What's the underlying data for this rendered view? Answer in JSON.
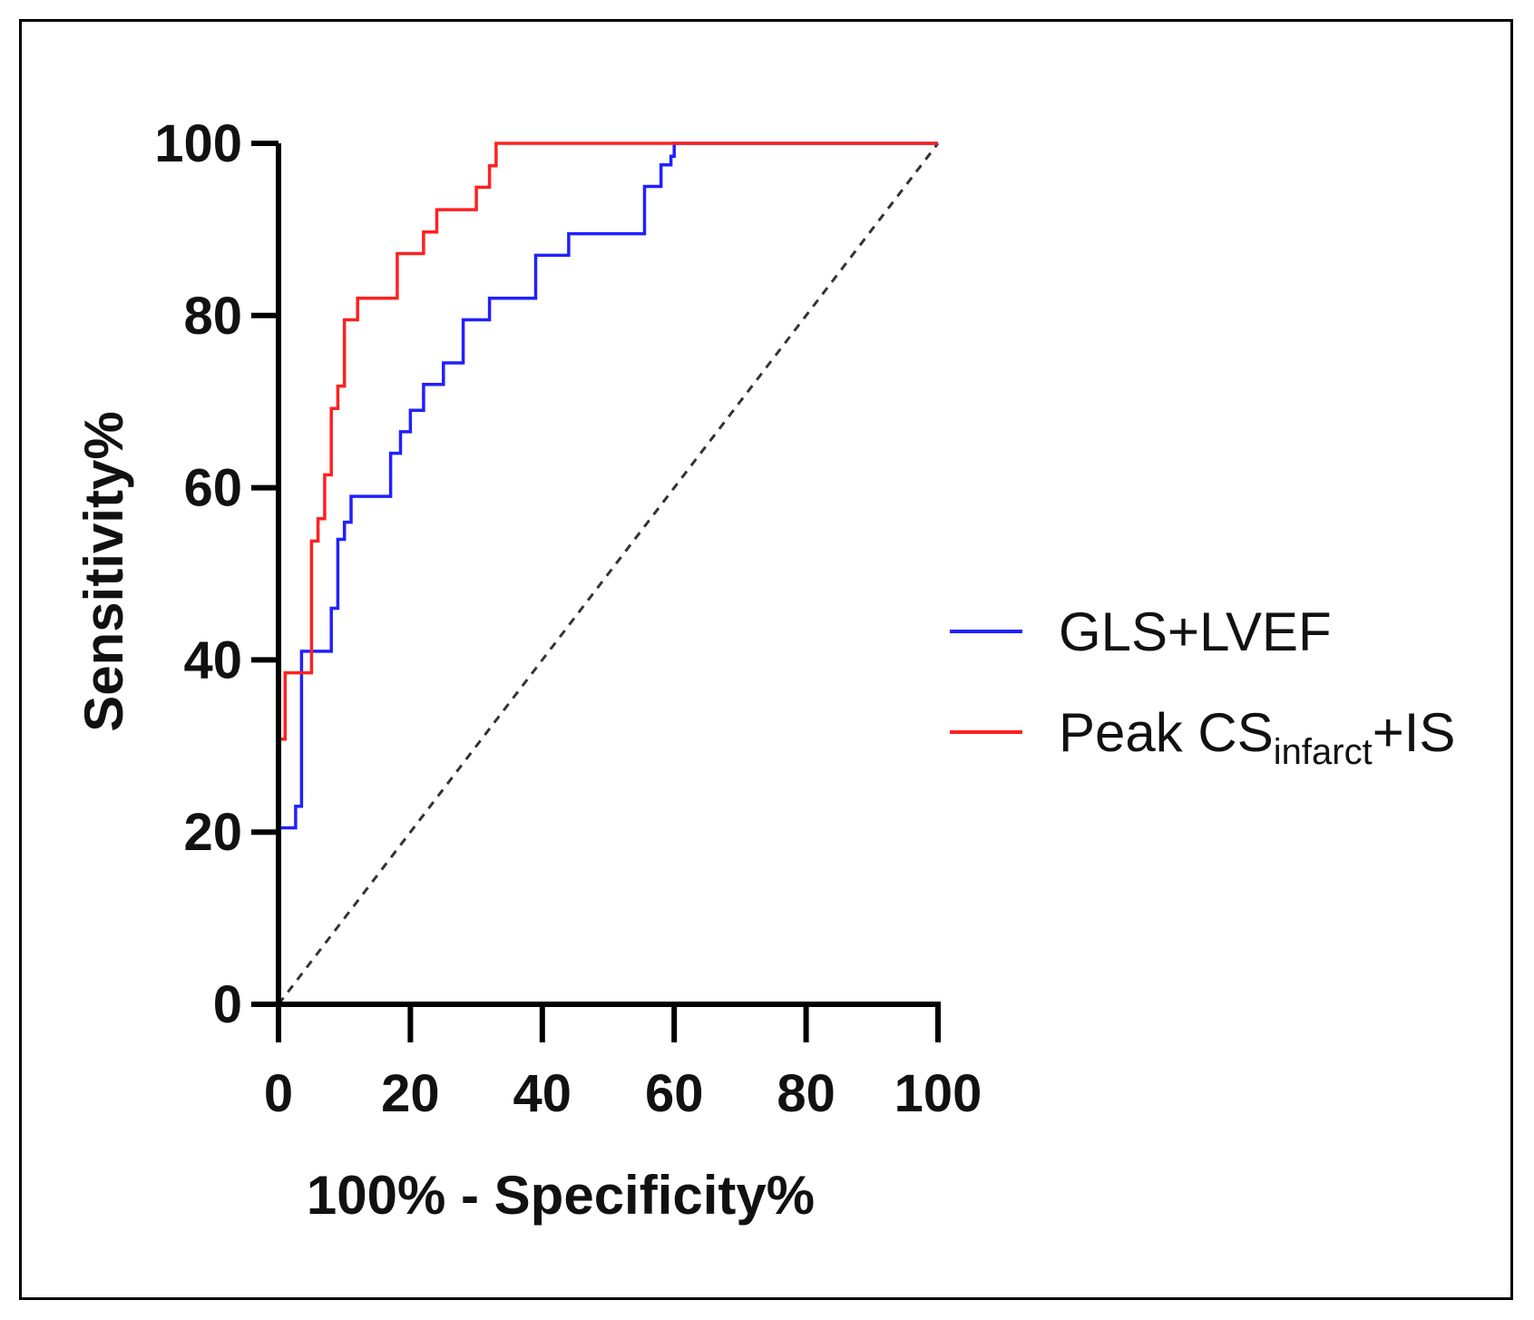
{
  "chart_data": {
    "type": "line",
    "xlabel": "100% - Specificity%",
    "ylabel": "Sensitivity%",
    "xlim": [
      0,
      100
    ],
    "ylim": [
      0,
      100
    ],
    "xticks": [
      0,
      20,
      40,
      60,
      80,
      100
    ],
    "yticks": [
      0,
      20,
      40,
      60,
      80,
      100
    ],
    "grid": false,
    "legend_position": "right",
    "reference_line": {
      "style": "dashed",
      "color": "#333333",
      "x": [
        0,
        100
      ],
      "y": [
        0,
        100
      ]
    },
    "series": [
      {
        "name": "GLS+LVEF",
        "legend_text": "GLS+LVEF",
        "color": "#2020ff",
        "x": [
          0,
          0,
          2.6,
          2.6,
          3.5,
          3.5,
          5,
          5,
          8,
          8,
          9,
          9,
          10,
          10,
          11,
          11,
          17,
          17,
          18.5,
          18.5,
          20,
          20,
          22,
          22,
          23.5,
          23.5,
          25,
          25,
          28,
          28,
          32,
          32,
          39,
          39,
          44,
          44,
          55.5,
          55.5,
          58,
          58,
          59.5,
          59.5,
          60,
          60,
          100
        ],
        "y": [
          0,
          20.5,
          20.5,
          23,
          23,
          41,
          41,
          41,
          41,
          46,
          46,
          54,
          54,
          56,
          56,
          59,
          59,
          64,
          64,
          66.5,
          66.5,
          69,
          69,
          72,
          72,
          72,
          72,
          74.5,
          74.5,
          79.5,
          79.5,
          82,
          82,
          87,
          87,
          89.5,
          89.5,
          95,
          95,
          97.5,
          97.5,
          98.5,
          98.5,
          100,
          100
        ]
      },
      {
        "name": "Peak CSinfarct+IS",
        "legend_main": "Peak CS",
        "legend_sub": "infarct",
        "legend_suffix": "+IS",
        "color": "#ff2020",
        "x": [
          0,
          0,
          1,
          1,
          5,
          5,
          6,
          6,
          7,
          7,
          8,
          8,
          9,
          9,
          10,
          10,
          11,
          11,
          12,
          12,
          14,
          14,
          18,
          18,
          22,
          22,
          23,
          23,
          24,
          24,
          30,
          30,
          32,
          32,
          33,
          33,
          100
        ],
        "y": [
          0,
          30.8,
          30.8,
          38.5,
          38.5,
          53.8,
          53.8,
          56.4,
          56.4,
          61.5,
          61.5,
          69.2,
          69.2,
          71.8,
          71.8,
          79.5,
          79.5,
          79.5,
          79.5,
          82,
          82,
          82,
          82,
          87.2,
          87.2,
          89.7,
          89.7,
          89.7,
          89.7,
          92.3,
          92.3,
          94.9,
          94.9,
          97.4,
          97.4,
          100,
          100
        ]
      }
    ]
  }
}
